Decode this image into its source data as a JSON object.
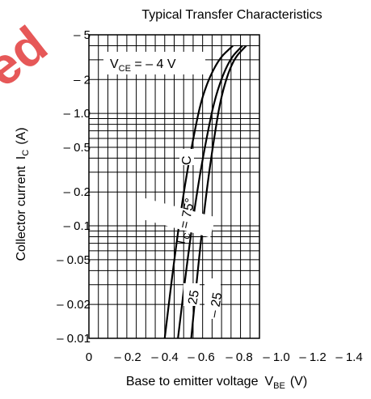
{
  "chart_data": {
    "type": "line",
    "title": "Typical Transfer Characteristics",
    "xlabel": "Base to emitter voltage",
    "xlabel_symbol": "V",
    "xlabel_sub": "BE",
    "xlabel_unit": "(V)",
    "ylabel": "Collector current",
    "ylabel_symbol": "I",
    "ylabel_sub": "C",
    "ylabel_unit": "(A)",
    "y_scale": "log",
    "xlim": [
      0,
      1.4
    ],
    "ylim": [
      0.01,
      5
    ],
    "grid": true,
    "x_ticks": [
      {
        "value": 0,
        "label": "0"
      },
      {
        "value": 0.2,
        "label": "– 0.2"
      },
      {
        "value": 0.4,
        "label": "– 0.4"
      },
      {
        "value": 0.6,
        "label": "– 0.6"
      },
      {
        "value": 0.8,
        "label": "– 0.8"
      },
      {
        "value": 1.0,
        "label": "– 1.0"
      },
      {
        "value": 1.2,
        "label": "– 1.2"
      },
      {
        "value": 1.4,
        "label": "– 1.4"
      }
    ],
    "y_ticks": [
      {
        "value": 5,
        "label": "– 5"
      },
      {
        "value": 2,
        "label": "– 2"
      },
      {
        "value": 1.0,
        "label": "– 1.0"
      },
      {
        "value": 0.5,
        "label": "– 0.5"
      },
      {
        "value": 0.2,
        "label": "– 0.2"
      },
      {
        "value": 0.1,
        "label": "– 0.1"
      },
      {
        "value": 0.05,
        "label": "– 0.05"
      },
      {
        "value": 0.02,
        "label": "– 0.02"
      },
      {
        "value": 0.01,
        "label": "– 0.01"
      }
    ],
    "condition": {
      "symbol": "V",
      "sub": "CE",
      "rest": " = – 4 V"
    },
    "series": [
      {
        "name": "75°",
        "label_prefix": "T",
        "label_sub": "C",
        "label_text": " = 75°",
        "label_unit": "C",
        "points": [
          [
            0.4,
            0.01
          ],
          [
            0.45,
            0.05
          ],
          [
            0.5,
            0.2
          ],
          [
            0.55,
            0.6
          ],
          [
            0.6,
            1.5
          ],
          [
            0.68,
            3.0
          ],
          [
            0.76,
            4.0
          ]
        ]
      },
      {
        "name": "25",
        "label_text": "25",
        "points": [
          [
            0.47,
            0.01
          ],
          [
            0.52,
            0.05
          ],
          [
            0.57,
            0.2
          ],
          [
            0.62,
            0.6
          ],
          [
            0.67,
            1.5
          ],
          [
            0.74,
            3.0
          ],
          [
            0.81,
            4.0
          ]
        ]
      },
      {
        "name": "– 25",
        "label_text": "– 25",
        "points": [
          [
            0.54,
            0.01
          ],
          [
            0.58,
            0.05
          ],
          [
            0.62,
            0.2
          ],
          [
            0.66,
            0.6
          ],
          [
            0.7,
            1.5
          ],
          [
            0.76,
            3.0
          ],
          [
            0.83,
            4.0
          ]
        ]
      }
    ]
  },
  "watermark": {
    "text": "ed",
    "color": "#e23b3b"
  }
}
